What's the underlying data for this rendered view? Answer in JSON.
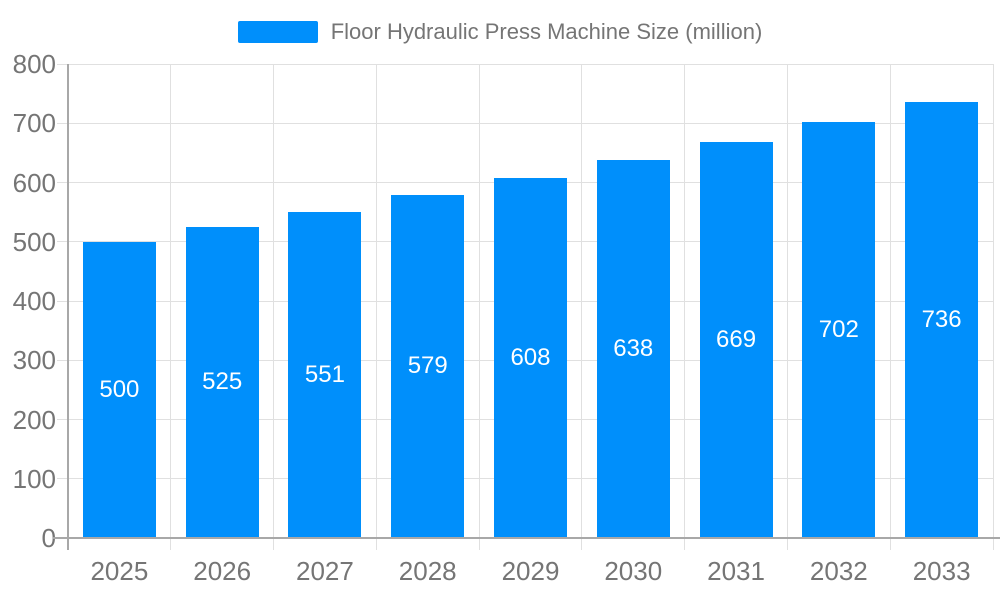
{
  "chart_data": {
    "type": "bar",
    "title": "Floor Hydraulic Press Machine Size (million)",
    "series": [
      {
        "name": "Floor Hydraulic Press Machine Size (million)",
        "values": [
          500,
          525,
          551,
          579,
          608,
          638,
          669,
          702,
          736
        ]
      }
    ],
    "categories": [
      "2025",
      "2026",
      "2027",
      "2028",
      "2029",
      "2030",
      "2031",
      "2032",
      "2033"
    ],
    "values": [
      500,
      525,
      551,
      579,
      608,
      638,
      669,
      702,
      736
    ],
    "value_labels_position": "inside-center",
    "xlabel": "",
    "ylabel": "",
    "ylim": [
      0,
      800
    ],
    "ytick_step": 100,
    "yticks": [
      0,
      100,
      200,
      300,
      400,
      500,
      600,
      700,
      800
    ],
    "grid": "both",
    "legend_position": "top-center",
    "colors": {
      "bar": "#008FFB",
      "value_label": "#FFFFFF",
      "axis_text": "#757575",
      "grid_line": "#E0E0E0",
      "axis_line": "#A8A8A8",
      "background": "#FFFFFF"
    }
  }
}
